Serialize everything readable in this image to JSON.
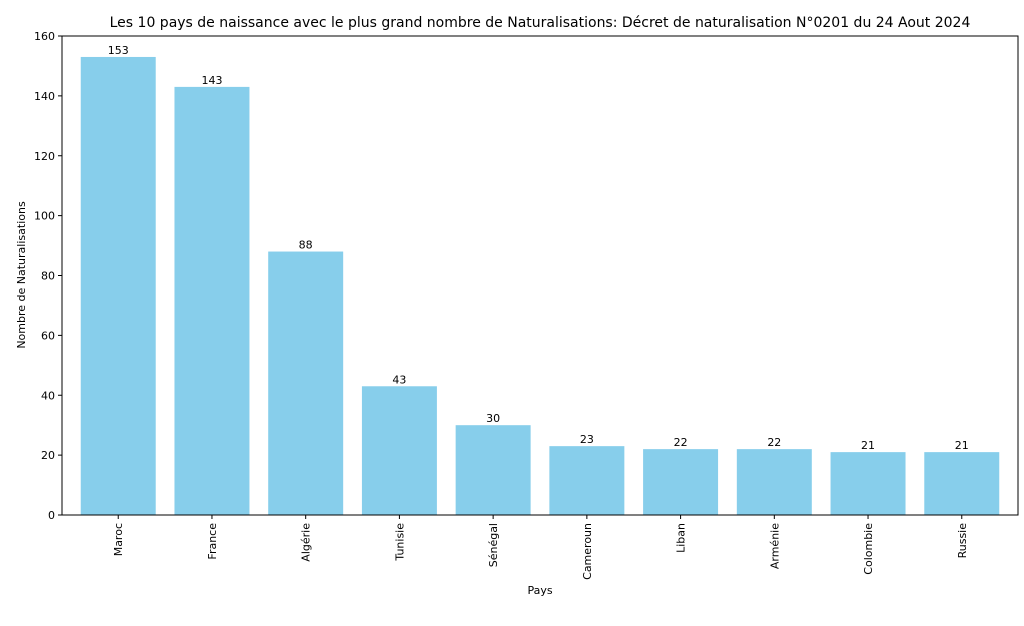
{
  "chart_data": {
    "type": "bar",
    "title": "Les 10 pays de naissance avec le plus grand nombre de Naturalisations: Décret de naturalisation N°0201 du 24 Aout 2024",
    "xlabel": "Pays",
    "ylabel": "Nombre de Naturalisations",
    "categories": [
      "Maroc",
      "France",
      "Algérie",
      "Tunisie",
      "Sénégal",
      "Cameroun",
      "Liban",
      "Arménie",
      "Colombie",
      "Russie"
    ],
    "values": [
      153,
      143,
      88,
      43,
      30,
      23,
      22,
      22,
      21,
      21
    ],
    "data_labels": [
      "153",
      "143",
      "88",
      "43",
      "30",
      "23",
      "22",
      "22",
      "21",
      "21"
    ],
    "ylim": [
      0,
      160
    ],
    "yticks": [
      0,
      20,
      40,
      60,
      80,
      100,
      120,
      140,
      160
    ],
    "ytick_labels": [
      "0",
      "20",
      "40",
      "60",
      "80",
      "100",
      "120",
      "140",
      "160"
    ],
    "bar_color": "#87ceeb",
    "grid": false,
    "legend": "none"
  }
}
